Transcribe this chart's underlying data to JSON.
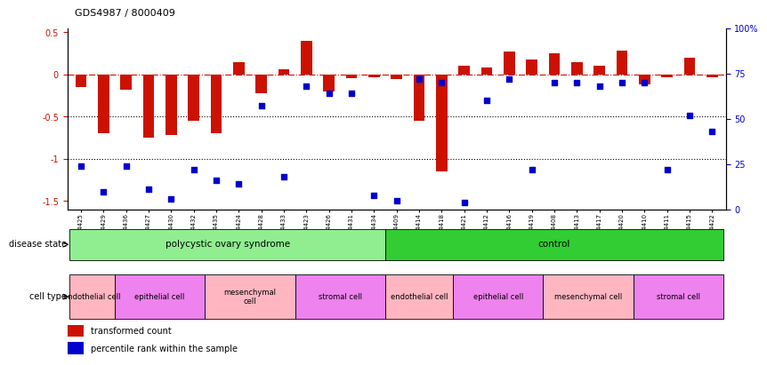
{
  "title": "GDS4987 / 8000409",
  "samples": [
    "GSM1174425",
    "GSM1174429",
    "GSM1174436",
    "GSM1174427",
    "GSM1174430",
    "GSM1174432",
    "GSM1174435",
    "GSM1174424",
    "GSM1174428",
    "GSM1174433",
    "GSM1174423",
    "GSM1174426",
    "GSM1174431",
    "GSM1174434",
    "GSM1174409",
    "GSM1174414",
    "GSM1174418",
    "GSM1174421",
    "GSM1174412",
    "GSM1174416",
    "GSM1174419",
    "GSM1174408",
    "GSM1174413",
    "GSM1174417",
    "GSM1174420",
    "GSM1174410",
    "GSM1174411",
    "GSM1174415",
    "GSM1174422"
  ],
  "red_values": [
    -0.15,
    -0.7,
    -0.18,
    -0.75,
    -0.72,
    -0.55,
    -0.7,
    0.15,
    -0.22,
    0.06,
    0.4,
    -0.2,
    -0.04,
    -0.03,
    -0.05,
    -0.55,
    -1.15,
    0.1,
    0.08,
    0.27,
    0.18,
    0.25,
    0.15,
    0.1,
    0.28,
    -0.12,
    -0.03,
    0.2,
    -0.03
  ],
  "blue_percentiles": [
    24,
    10,
    24,
    11,
    6,
    22,
    16,
    14,
    57,
    18,
    68,
    64,
    64,
    8,
    5,
    72,
    70,
    4,
    60,
    72,
    22,
    70,
    70,
    68,
    70,
    70,
    22,
    52,
    43
  ],
  "disease_state_groups": [
    {
      "label": "polycystic ovary syndrome",
      "start": 0,
      "end": 14,
      "color": "#90EE90"
    },
    {
      "label": "control",
      "start": 14,
      "end": 29,
      "color": "#32CD32"
    }
  ],
  "cell_type_groups": [
    {
      "label": "endothelial cell",
      "start": 0,
      "end": 2,
      "color": "#FFB6C1"
    },
    {
      "label": "epithelial cell",
      "start": 2,
      "end": 6,
      "color": "#EE82EE"
    },
    {
      "label": "mesenchymal\ncell",
      "start": 6,
      "end": 10,
      "color": "#FFB6C1"
    },
    {
      "label": "stromal cell",
      "start": 10,
      "end": 14,
      "color": "#EE82EE"
    },
    {
      "label": "endothelial cell",
      "start": 14,
      "end": 17,
      "color": "#FFB6C1"
    },
    {
      "label": "epithelial cell",
      "start": 17,
      "end": 21,
      "color": "#EE82EE"
    },
    {
      "label": "mesenchymal cell",
      "start": 21,
      "end": 25,
      "color": "#FFB6C1"
    },
    {
      "label": "stromal cell",
      "start": 25,
      "end": 29,
      "color": "#EE82EE"
    }
  ],
  "ylim_left": [
    -1.6,
    0.55
  ],
  "ylim_right": [
    0,
    100
  ],
  "red_color": "#CC1100",
  "blue_color": "#0000CC",
  "bar_width": 0.5,
  "dot_size": 18,
  "left_yticks": [
    -1.5,
    -1.0,
    -0.5,
    0.0,
    0.5
  ],
  "left_yticklabels": [
    "-1.5",
    "-1",
    "-0.5",
    "0",
    "0.5"
  ],
  "right_yticks": [
    0,
    25,
    50,
    75,
    100
  ],
  "right_yticklabels": [
    "0",
    "25",
    "50",
    "75",
    "100%"
  ]
}
